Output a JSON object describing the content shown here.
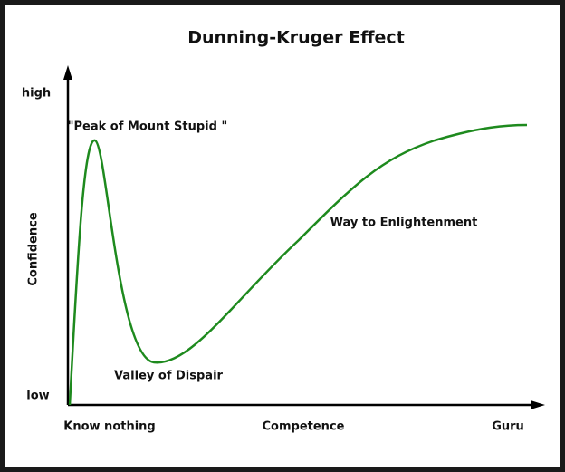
{
  "title": "Dunning-Kruger Effect",
  "y_axis": {
    "label": "Confidence",
    "high": "high",
    "low": "low"
  },
  "x_axis": {
    "start": "Know nothing",
    "label": "Competence",
    "end": "Guru"
  },
  "annotations": {
    "peak": "\"Peak of Mount Stupid \"",
    "valley": "Valley of Dispair",
    "slope": "Way to Enlightenment"
  }
}
